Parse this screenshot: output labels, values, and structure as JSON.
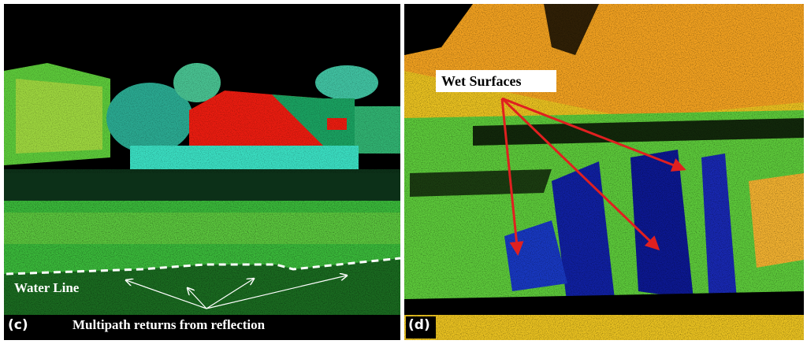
{
  "panels": [
    {
      "label": "(c)",
      "annotations": [
        "Water Line",
        "Multipath returns from reflection"
      ]
    },
    {
      "label": "(d)",
      "annotations": [
        "Wet Surfaces"
      ]
    }
  ]
}
